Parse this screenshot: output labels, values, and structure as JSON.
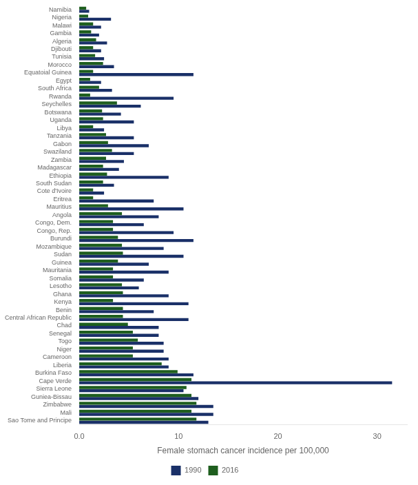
{
  "chart_data": {
    "type": "bar",
    "orientation": "horizontal",
    "xlabel": "Female stomach cancer incidence per 100,000",
    "categories": [
      "Namibia",
      "Nigeria",
      "Malawi",
      "Gambia",
      "Algeria",
      "Djibouti",
      "Tunisia",
      "Morocco",
      "Equatoial Guinea",
      "Egypt",
      "South Africa",
      "Rwanda",
      "Seychelles",
      "Botswana",
      "Uganda",
      "Libya",
      "Tanzania",
      "Gabon",
      "Swaziland",
      "Zambia",
      "Madagascar",
      "Ethiopia",
      "South Sudan",
      "Cote d'Ivoire",
      "Eritrea",
      "Mauritius",
      "Angola",
      "Congo, Dem.",
      "Congo, Rep.",
      "Burundi",
      "Mozambique",
      "Sudan",
      "Guinea",
      "Mauritania",
      "Somalia",
      "Lesotho",
      "Ghana",
      "Kenya",
      "Benin",
      "Central African Republic",
      "Chad",
      "Senegal",
      "Togo",
      "Niger",
      "Cameroon",
      "Liberia",
      "Burkina Faso",
      "Cape Verde",
      "Sierra Leone",
      "Guniea-Bissau",
      "Zimbabwe",
      "Mali",
      "Sao Tome and Principe"
    ],
    "series": [
      {
        "name": "2016",
        "color": "#1e5e1e",
        "values": [
          0.7,
          0.9,
          1.4,
          1.2,
          1.7,
          1.4,
          1.6,
          2.4,
          1.4,
          1.1,
          2.0,
          1.1,
          3.8,
          2.3,
          2.4,
          1.4,
          2.7,
          2.9,
          3.3,
          2.7,
          2.4,
          2.8,
          2.4,
          1.4,
          1.4,
          2.9,
          4.3,
          3.4,
          3.4,
          3.9,
          4.3,
          4.4,
          3.9,
          3.4,
          3.4,
          4.3,
          4.4,
          3.4,
          4.4,
          4.4,
          4.9,
          5.4,
          5.9,
          5.4,
          5.4,
          8.3,
          9.9,
          11.3,
          10.8,
          11.3,
          11.8,
          11.3,
          11.8
        ]
      },
      {
        "name": "1990",
        "color": "#1a3068",
        "values": [
          1.0,
          3.2,
          2.2,
          2.0,
          2.8,
          2.2,
          2.5,
          3.5,
          11.5,
          2.2,
          3.3,
          9.5,
          6.2,
          4.2,
          5.5,
          2.5,
          5.5,
          7.0,
          5.5,
          4.5,
          4.0,
          9.0,
          3.5,
          2.5,
          7.5,
          10.5,
          8.0,
          6.5,
          9.5,
          11.5,
          8.5,
          10.5,
          7.0,
          9.0,
          6.5,
          6.0,
          9.0,
          11.0,
          7.5,
          11.0,
          8.0,
          8.0,
          8.5,
          8.5,
          9.0,
          9.0,
          11.5,
          31.5,
          10.5,
          12.0,
          13.5,
          13.5,
          13.0
        ]
      }
    ],
    "xlim": [
      0,
      33
    ],
    "xticks": [
      {
        "value": 0,
        "label": "0.0"
      },
      10,
      20,
      30
    ],
    "grid": false,
    "legend": "bottom"
  }
}
